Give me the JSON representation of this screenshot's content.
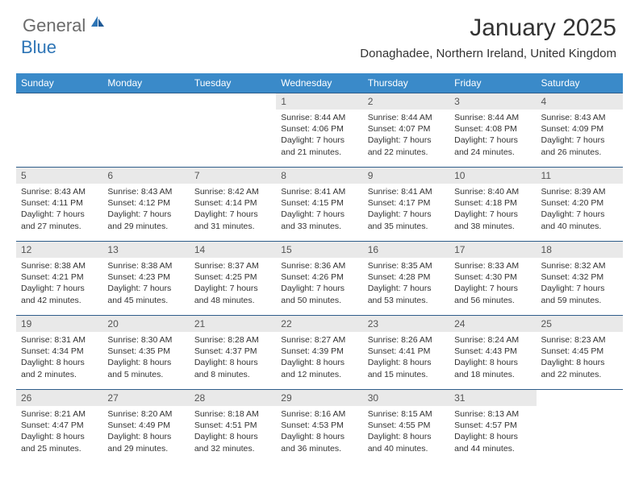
{
  "logo": {
    "general": "General",
    "blue": "Blue"
  },
  "title": "January 2025",
  "location": "Donaghadee, Northern Ireland, United Kingdom",
  "colors": {
    "header_bg": "#3a8ac9",
    "header_text": "#ffffff",
    "daynum_bg": "#e9e9e9",
    "border": "#2e5d8a",
    "logo_gray": "#6b6b6b",
    "logo_blue": "#2e75b6"
  },
  "day_headers": [
    "Sunday",
    "Monday",
    "Tuesday",
    "Wednesday",
    "Thursday",
    "Friday",
    "Saturday"
  ],
  "weeks": [
    [
      {
        "n": "",
        "sr": "",
        "ss": "",
        "dl": ""
      },
      {
        "n": "",
        "sr": "",
        "ss": "",
        "dl": ""
      },
      {
        "n": "",
        "sr": "",
        "ss": "",
        "dl": ""
      },
      {
        "n": "1",
        "sr": "8:44 AM",
        "ss": "4:06 PM",
        "dl": "7 hours and 21 minutes."
      },
      {
        "n": "2",
        "sr": "8:44 AM",
        "ss": "4:07 PM",
        "dl": "7 hours and 22 minutes."
      },
      {
        "n": "3",
        "sr": "8:44 AM",
        "ss": "4:08 PM",
        "dl": "7 hours and 24 minutes."
      },
      {
        "n": "4",
        "sr": "8:43 AM",
        "ss": "4:09 PM",
        "dl": "7 hours and 26 minutes."
      }
    ],
    [
      {
        "n": "5",
        "sr": "8:43 AM",
        "ss": "4:11 PM",
        "dl": "7 hours and 27 minutes."
      },
      {
        "n": "6",
        "sr": "8:43 AM",
        "ss": "4:12 PM",
        "dl": "7 hours and 29 minutes."
      },
      {
        "n": "7",
        "sr": "8:42 AM",
        "ss": "4:14 PM",
        "dl": "7 hours and 31 minutes."
      },
      {
        "n": "8",
        "sr": "8:41 AM",
        "ss": "4:15 PM",
        "dl": "7 hours and 33 minutes."
      },
      {
        "n": "9",
        "sr": "8:41 AM",
        "ss": "4:17 PM",
        "dl": "7 hours and 35 minutes."
      },
      {
        "n": "10",
        "sr": "8:40 AM",
        "ss": "4:18 PM",
        "dl": "7 hours and 38 minutes."
      },
      {
        "n": "11",
        "sr": "8:39 AM",
        "ss": "4:20 PM",
        "dl": "7 hours and 40 minutes."
      }
    ],
    [
      {
        "n": "12",
        "sr": "8:38 AM",
        "ss": "4:21 PM",
        "dl": "7 hours and 42 minutes."
      },
      {
        "n": "13",
        "sr": "8:38 AM",
        "ss": "4:23 PM",
        "dl": "7 hours and 45 minutes."
      },
      {
        "n": "14",
        "sr": "8:37 AM",
        "ss": "4:25 PM",
        "dl": "7 hours and 48 minutes."
      },
      {
        "n": "15",
        "sr": "8:36 AM",
        "ss": "4:26 PM",
        "dl": "7 hours and 50 minutes."
      },
      {
        "n": "16",
        "sr": "8:35 AM",
        "ss": "4:28 PM",
        "dl": "7 hours and 53 minutes."
      },
      {
        "n": "17",
        "sr": "8:33 AM",
        "ss": "4:30 PM",
        "dl": "7 hours and 56 minutes."
      },
      {
        "n": "18",
        "sr": "8:32 AM",
        "ss": "4:32 PM",
        "dl": "7 hours and 59 minutes."
      }
    ],
    [
      {
        "n": "19",
        "sr": "8:31 AM",
        "ss": "4:34 PM",
        "dl": "8 hours and 2 minutes."
      },
      {
        "n": "20",
        "sr": "8:30 AM",
        "ss": "4:35 PM",
        "dl": "8 hours and 5 minutes."
      },
      {
        "n": "21",
        "sr": "8:28 AM",
        "ss": "4:37 PM",
        "dl": "8 hours and 8 minutes."
      },
      {
        "n": "22",
        "sr": "8:27 AM",
        "ss": "4:39 PM",
        "dl": "8 hours and 12 minutes."
      },
      {
        "n": "23",
        "sr": "8:26 AM",
        "ss": "4:41 PM",
        "dl": "8 hours and 15 minutes."
      },
      {
        "n": "24",
        "sr": "8:24 AM",
        "ss": "4:43 PM",
        "dl": "8 hours and 18 minutes."
      },
      {
        "n": "25",
        "sr": "8:23 AM",
        "ss": "4:45 PM",
        "dl": "8 hours and 22 minutes."
      }
    ],
    [
      {
        "n": "26",
        "sr": "8:21 AM",
        "ss": "4:47 PM",
        "dl": "8 hours and 25 minutes."
      },
      {
        "n": "27",
        "sr": "8:20 AM",
        "ss": "4:49 PM",
        "dl": "8 hours and 29 minutes."
      },
      {
        "n": "28",
        "sr": "8:18 AM",
        "ss": "4:51 PM",
        "dl": "8 hours and 32 minutes."
      },
      {
        "n": "29",
        "sr": "8:16 AM",
        "ss": "4:53 PM",
        "dl": "8 hours and 36 minutes."
      },
      {
        "n": "30",
        "sr": "8:15 AM",
        "ss": "4:55 PM",
        "dl": "8 hours and 40 minutes."
      },
      {
        "n": "31",
        "sr": "8:13 AM",
        "ss": "4:57 PM",
        "dl": "8 hours and 44 minutes."
      },
      {
        "n": "",
        "sr": "",
        "ss": "",
        "dl": ""
      }
    ]
  ],
  "labels": {
    "sunrise": "Sunrise:",
    "sunset": "Sunset:",
    "daylight": "Daylight:"
  }
}
